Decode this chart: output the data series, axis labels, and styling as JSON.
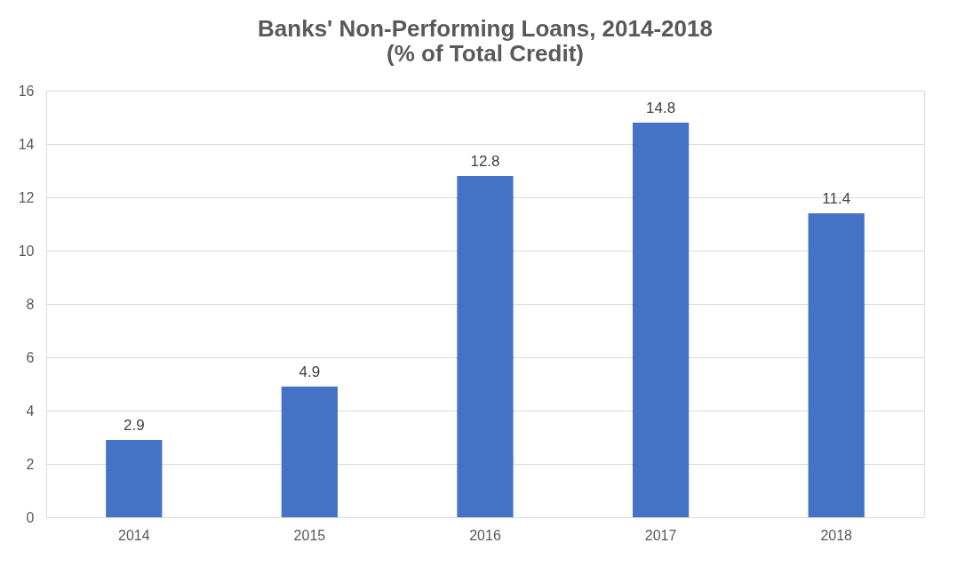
{
  "chart_data": {
    "type": "bar",
    "title": "Banks' Non-Performing Loans, 2014-2018\n(% of Total Credit)",
    "categories": [
      "2014",
      "2015",
      "2016",
      "2017",
      "2018"
    ],
    "values": [
      2.9,
      4.9,
      12.8,
      14.8,
      11.4
    ],
    "color": "#4472c4",
    "ylim": [
      0,
      16
    ],
    "yticks": [
      0,
      2,
      4,
      6,
      8,
      10,
      12,
      14,
      16
    ],
    "grid": "y",
    "data_labels": true
  }
}
